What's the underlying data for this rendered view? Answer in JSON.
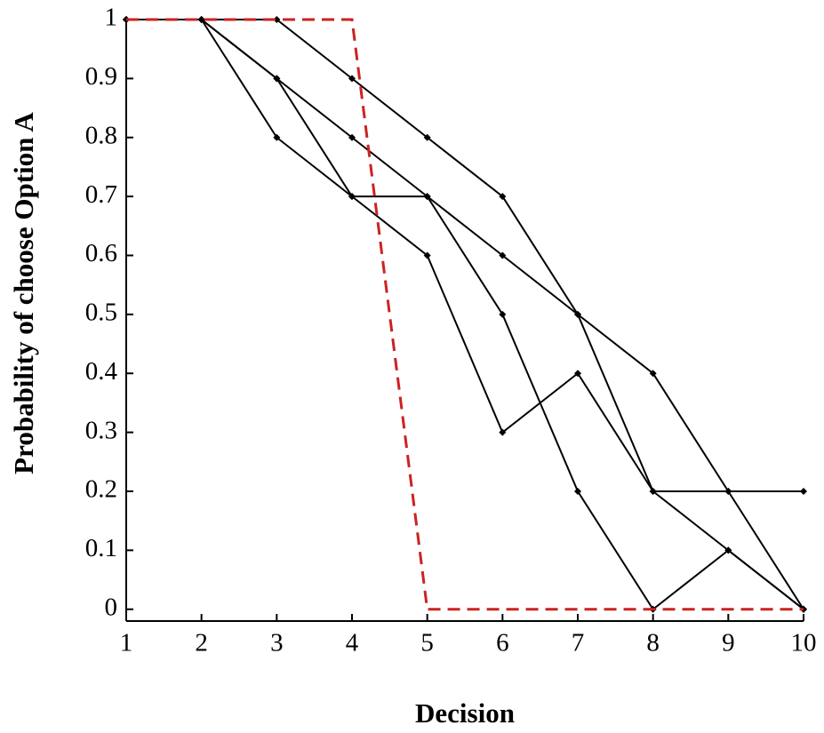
{
  "chart_data": {
    "type": "line",
    "x_label": "Decision",
    "y_label": "Probability of choose Option A",
    "x": [
      1,
      2,
      3,
      4,
      5,
      6,
      7,
      8,
      9,
      10
    ],
    "series": [
      {
        "color": "#000000",
        "values": [
          1,
          1,
          1,
          0.9,
          0.8,
          0.7,
          0.5,
          0.2,
          0.2,
          0.2
        ]
      },
      {
        "color": "#000000",
        "values": [
          1,
          1,
          0.9,
          0.8,
          0.7,
          0.6,
          0.5,
          0.4,
          0.2,
          0
        ]
      },
      {
        "color": "#000000",
        "values": [
          1,
          1,
          0.8,
          0.7,
          0.7,
          0.5,
          0.2,
          0,
          0.1,
          0
        ]
      },
      {
        "color": "#000000",
        "values": [
          1,
          1,
          0.9,
          0.7,
          0.6,
          0.3,
          0.4,
          0.2,
          0.1,
          0
        ]
      },
      {
        "color": "#cc2222",
        "dashed": true,
        "values": [
          1,
          1,
          1,
          1,
          0,
          0,
          0,
          0,
          0,
          0
        ]
      }
    ],
    "xlim": [
      1,
      10
    ],
    "xticks": [
      1,
      2,
      3,
      4,
      5,
      6,
      7,
      8,
      9,
      10
    ],
    "ylim": [
      -0.02,
      1
    ],
    "yticks": [
      0,
      0.1,
      0.2,
      0.3,
      0.4,
      0.5,
      0.6,
      0.7,
      0.8,
      0.9,
      1
    ]
  }
}
